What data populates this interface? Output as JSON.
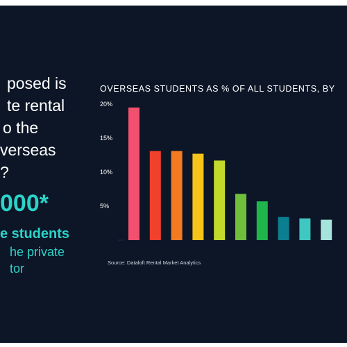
{
  "colors": {
    "background": "#0c1627",
    "accent": "#2bd3c8",
    "bars": [
      "#f2506f",
      "#f1402c",
      "#f47a22",
      "#f5c31a",
      "#c3da2c",
      "#6fbf3b",
      "#1fb54b",
      "#0b7f8f",
      "#3fc7c1",
      "#a6e3dd"
    ]
  },
  "headline": {
    "lines": [
      "posed is",
      "te rental",
      "o the",
      "verseas",
      "?"
    ],
    "big_number": "000*",
    "sub_lines": [
      "e students",
      "he private",
      "tor"
    ]
  },
  "chart_data": {
    "type": "bar",
    "title": "OVERSEAS STUDENTS AS % OF ALL STUDENTS, BY",
    "source": "Source: Dataloft Rental Market Analytics",
    "ylim": [
      0,
      20
    ],
    "yticks": [
      "5%",
      "10%",
      "15%",
      "20%"
    ],
    "ytick_values": [
      5,
      10,
      15,
      20
    ],
    "values": [
      19.5,
      13.1,
      13.1,
      12.7,
      11.7,
      6.8,
      5.7,
      3.4,
      3.2,
      3.0
    ],
    "grid": false,
    "legend": "none"
  }
}
